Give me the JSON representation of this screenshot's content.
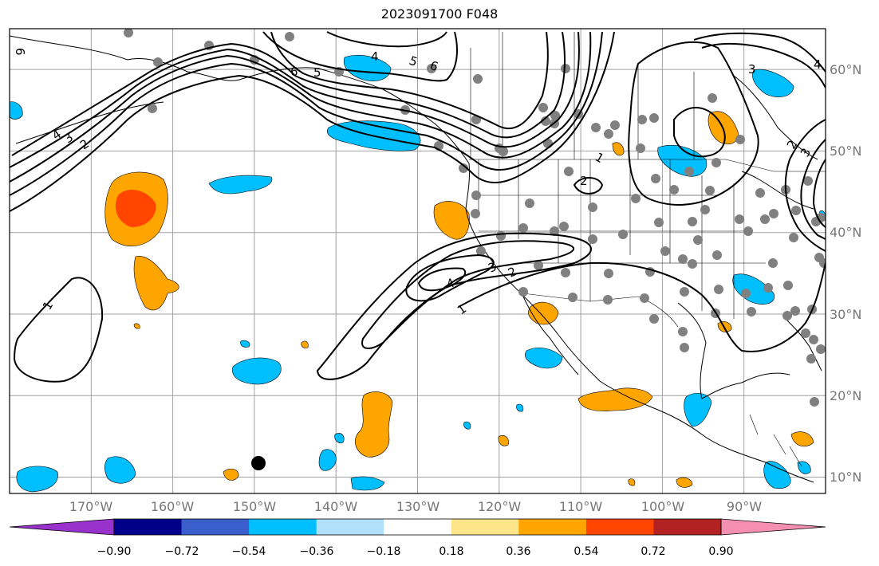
{
  "title": "2023091700 F048",
  "map": {
    "lon_range": [
      -180,
      -80
    ],
    "lat_range": [
      8,
      65
    ],
    "lon_ticks": [
      "170°W",
      "160°W",
      "150°W",
      "140°W",
      "130°W",
      "120°W",
      "110°W",
      "100°W",
      "90°W"
    ],
    "lat_ticks": [
      "60°N",
      "50°N",
      "40°N",
      "30°N",
      "20°N",
      "10°N"
    ],
    "gridlines": true,
    "contour_labels": [
      "1",
      "2",
      "3",
      "4",
      "5",
      "6"
    ]
  },
  "colorbar": {
    "ticks": [
      "−0.90",
      "−0.72",
      "−0.54",
      "−0.36",
      "−0.18",
      "0.18",
      "0.36",
      "0.54",
      "0.72",
      "0.90"
    ],
    "colors": [
      "#9932cc",
      "#00008b",
      "#3a5fcd",
      "#00bfff",
      "#b0e0fa",
      "#ffffff",
      "#fde68a",
      "#ffa500",
      "#ff4500",
      "#b22222",
      "#f48fb1"
    ],
    "extend": "both"
  },
  "colors": {
    "positive_fill": "#ffa500",
    "strong_positive_fill": "#ff4500",
    "negative_fill": "#00bfff",
    "station_dot": "#808080",
    "marker": "#000000"
  }
}
